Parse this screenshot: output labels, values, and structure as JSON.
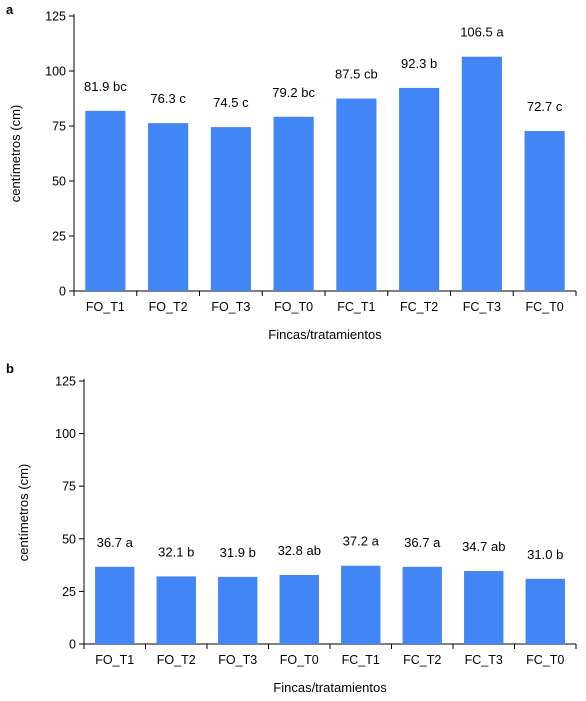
{
  "colors": {
    "bar": "#4285F4",
    "axis": "#000000"
  },
  "chart_data": [
    {
      "panel": "a",
      "type": "bar",
      "categories": [
        "FO_T1",
        "FO_T2",
        "FO_T3",
        "FO_T0",
        "FC_T1",
        "FC_T2",
        "FC_T3",
        "FC_T0"
      ],
      "values": [
        81.9,
        76.3,
        74.5,
        79.2,
        87.5,
        92.3,
        106.5,
        72.7
      ],
      "data_labels": [
        "81.9 bc",
        "76.3 c",
        "74.5 c",
        "79.2 bc",
        "87.5 cb",
        "92.3 b",
        "106.5 a",
        "72.7 c"
      ],
      "xlabel": "Fincas/tratamientos",
      "ylabel": "centímetros (cm)",
      "ylim": [
        0,
        125
      ],
      "yticks": [
        0,
        25,
        50,
        75,
        100,
        125
      ],
      "grid": false,
      "legend": "none"
    },
    {
      "panel": "b",
      "type": "bar",
      "categories": [
        "FO_T1",
        "FO_T2",
        "FO_T3",
        "FO_T0",
        "FC_T1",
        "FC_T2",
        "FC_T3",
        "FC_T0"
      ],
      "values": [
        36.7,
        32.1,
        31.9,
        32.8,
        37.2,
        36.7,
        34.7,
        31.0
      ],
      "data_labels": [
        "36.7 a",
        "32.1 b",
        "31.9 b",
        "32.8 ab",
        "37.2 a",
        "36.7 a",
        "34.7 ab",
        "31.0 b"
      ],
      "xlabel": "Fincas/tratamientos",
      "ylabel": "centímetros (cm)",
      "ylim": [
        0,
        125
      ],
      "yticks": [
        0,
        25,
        50,
        75,
        100,
        125
      ],
      "grid": false,
      "legend": "none"
    }
  ]
}
